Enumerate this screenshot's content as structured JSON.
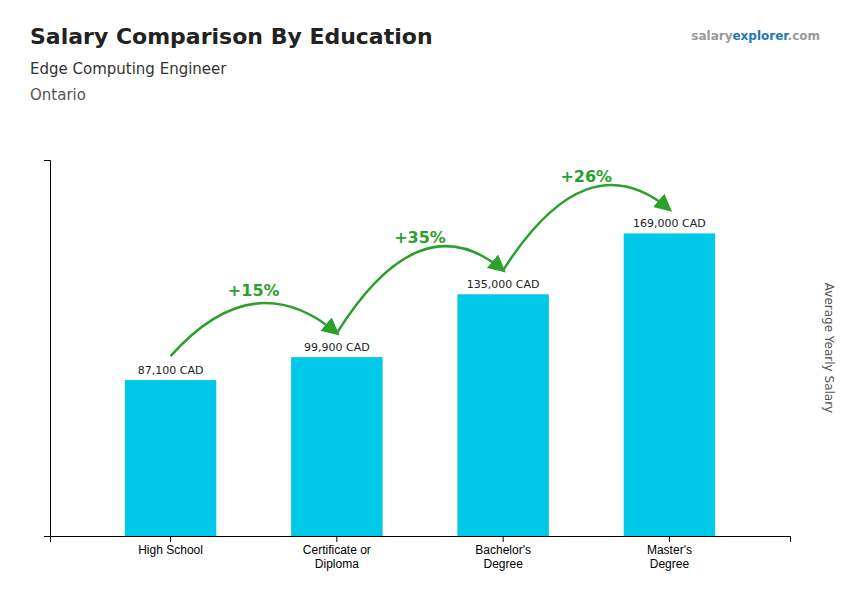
{
  "chart_data": {
    "type": "bar",
    "title": "Salary Comparison By Education",
    "subtitle": "Edge Computing Engineer",
    "annotations": {
      "location": "Ontario",
      "watermark": [
        "salary",
        "explorer",
        ".com"
      ],
      "changes": [
        "+15%",
        "+35%",
        "+26%"
      ]
    },
    "ylabel": "Average Yearly Salary",
    "categories": [
      "High School",
      "Certificate or\nDiploma",
      "Bachelor's\nDegree",
      "Master's\nDegree"
    ],
    "values": [
      87100,
      99900,
      135000,
      169000
    ],
    "value_labels": [
      "87,100 CAD",
      "99,900 CAD",
      "135,000 CAD",
      "169,000 CAD"
    ],
    "data_labels": true,
    "color": "#00c8e8",
    "ylim": [
      0,
      210000
    ],
    "yticks": [],
    "tick_labels": "x",
    "grid": false
  }
}
